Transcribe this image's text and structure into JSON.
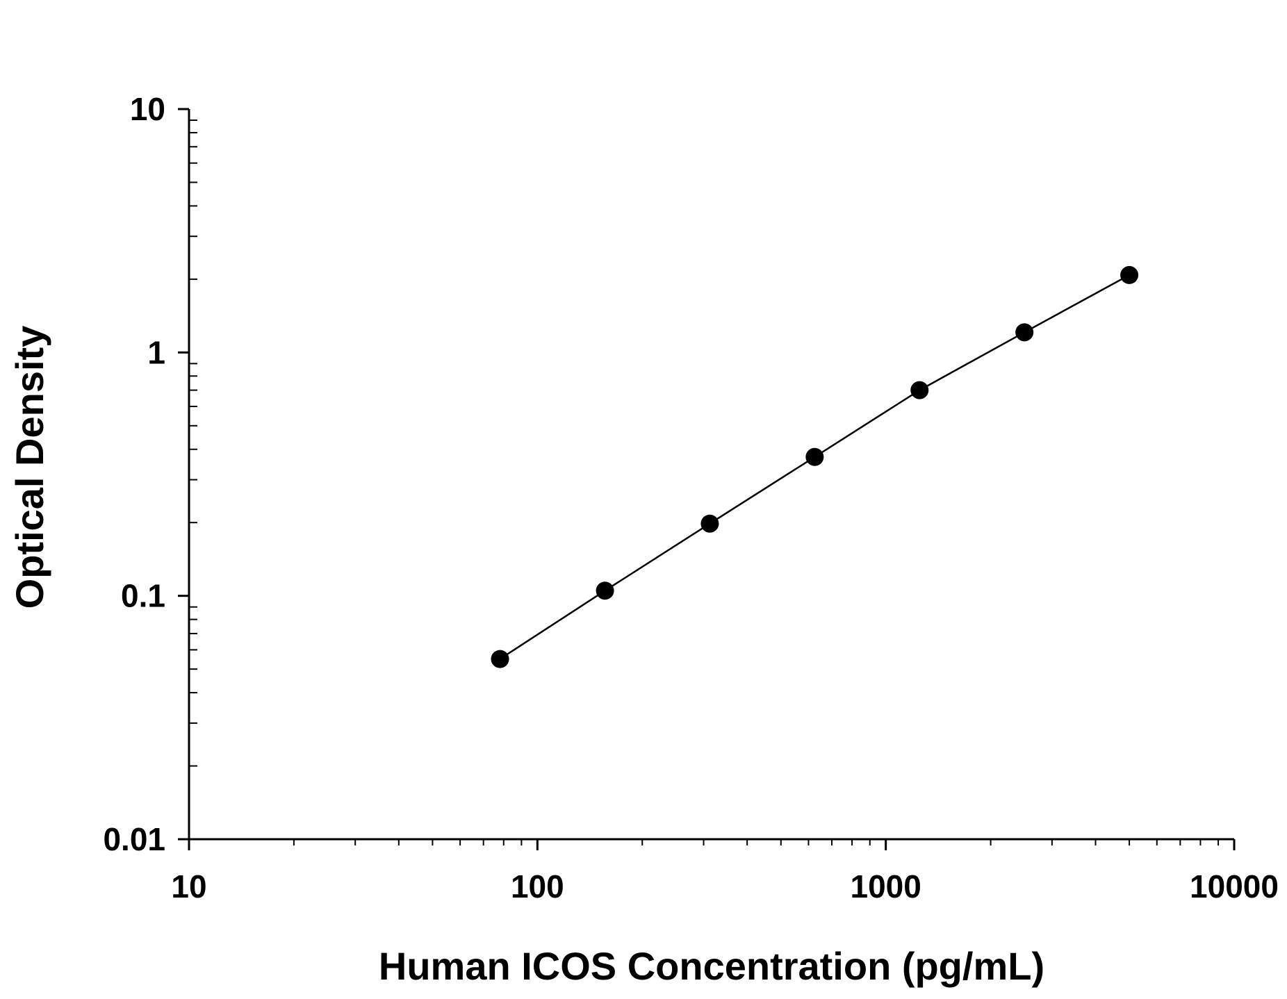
{
  "chart_data": {
    "type": "scatter",
    "title": "",
    "xlabel": "Human ICOS Concentration (pg/mL)",
    "ylabel": "Optical Density",
    "x_scale": "log",
    "y_scale": "log",
    "xlim": [
      10,
      10000
    ],
    "ylim": [
      0.01,
      10
    ],
    "x_ticks": [
      "10",
      "100",
      "1000",
      "10000"
    ],
    "y_ticks": [
      "0.01",
      "0.1",
      "1",
      "10"
    ],
    "grid": false,
    "legend": "none",
    "series": [
      {
        "x": [
          78.1,
          156.3,
          312.5,
          625,
          1250,
          2500,
          5000
        ],
        "y": [
          0.055,
          0.105,
          0.198,
          0.372,
          0.7,
          1.21,
          2.08
        ],
        "markers": true,
        "fit_line": true
      }
    ],
    "colors": {
      "marker": "#000000",
      "line": "#000000",
      "axis": "#000000"
    }
  }
}
